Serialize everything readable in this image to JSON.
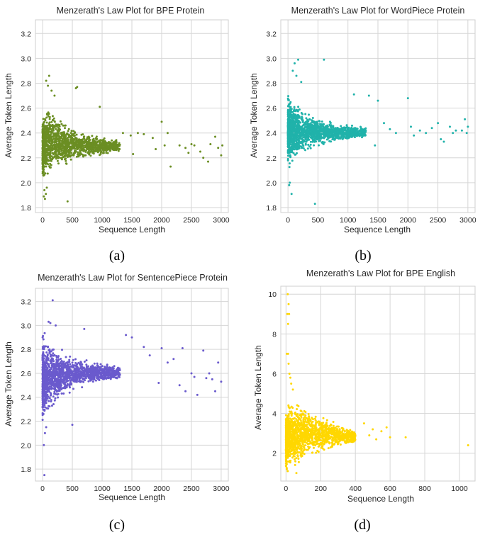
{
  "captions": [
    "(a)",
    "(b)",
    "(c)",
    "(d)"
  ],
  "chart_data": [
    {
      "type": "scatter",
      "title": "Menzerath's Law Plot for BPE Protein",
      "xlabel": "Sequence Length",
      "ylabel": "Average Token Length",
      "xlim": [
        -120,
        3120
      ],
      "ylim": [
        1.76,
        3.31
      ],
      "xticks": [
        0,
        500,
        1000,
        1500,
        2000,
        2500,
        3000
      ],
      "yticks": [
        1.8,
        2.0,
        2.2,
        2.4,
        2.6,
        2.8,
        3.0,
        3.2
      ],
      "ytick_format": 1,
      "grid": true,
      "color": "#6b8e23",
      "series": [
        {
          "description_of_cloud": "dense band",
          "core": [
            [
              30,
              2.02,
              2.55
            ],
            [
              80,
              2.05,
              2.6
            ],
            [
              150,
              2.08,
              2.58
            ],
            [
              250,
              2.12,
              2.52
            ],
            [
              350,
              2.14,
              2.47
            ],
            [
              500,
              2.17,
              2.43
            ],
            [
              700,
              2.2,
              2.4
            ],
            [
              900,
              2.22,
              2.38
            ],
            [
              1100,
              2.23,
              2.36
            ],
            [
              1300,
              2.24,
              2.34
            ]
          ],
          "outliers": [
            [
              40,
              1.87
            ],
            [
              55,
              1.91
            ],
            [
              30,
              1.94
            ],
            [
              70,
              1.96
            ],
            [
              20,
              1.89
            ],
            [
              90,
              2.78
            ],
            [
              110,
              2.86
            ],
            [
              60,
              2.82
            ],
            [
              150,
              2.74
            ],
            [
              200,
              2.7
            ],
            [
              580,
              2.77
            ],
            [
              560,
              2.76
            ],
            [
              420,
              1.85
            ],
            [
              960,
              2.61
            ],
            [
              1350,
              2.4
            ],
            [
              1480,
              2.38
            ],
            [
              1520,
              2.23
            ],
            [
              1600,
              2.4
            ],
            [
              1700,
              2.39
            ],
            [
              1850,
              2.36
            ],
            [
              1900,
              2.27
            ],
            [
              2000,
              2.49
            ],
            [
              2050,
              2.3
            ],
            [
              2100,
              2.4
            ],
            [
              2150,
              2.13
            ],
            [
              2300,
              2.3
            ],
            [
              2400,
              2.28
            ],
            [
              2450,
              2.24
            ],
            [
              2500,
              2.31
            ],
            [
              2550,
              2.3
            ],
            [
              2650,
              2.25
            ],
            [
              2700,
              2.2
            ],
            [
              2780,
              2.17
            ],
            [
              2820,
              2.31
            ],
            [
              2900,
              2.37
            ],
            [
              2950,
              2.28
            ],
            [
              3000,
              2.22
            ],
            [
              3020,
              2.3
            ]
          ]
        }
      ]
    },
    {
      "type": "scatter",
      "title": "Menzerath's Law Plot for WordPiece Protein",
      "xlabel": "Sequence Length",
      "ylabel": "Average Token Length",
      "xlim": [
        -120,
        3120
      ],
      "ylim": [
        1.76,
        3.31
      ],
      "xticks": [
        0,
        500,
        1000,
        1500,
        2000,
        2500,
        3000
      ],
      "yticks": [
        1.8,
        2.0,
        2.2,
        2.4,
        2.6,
        2.8,
        3.0,
        3.2
      ],
      "ytick_format": 1,
      "grid": true,
      "color": "#20b2aa",
      "series": [
        {
          "description_of_cloud": "dense band",
          "core": [
            [
              30,
              2.1,
              2.7
            ],
            [
              80,
              2.16,
              2.66
            ],
            [
              150,
              2.2,
              2.62
            ],
            [
              250,
              2.24,
              2.58
            ],
            [
              350,
              2.27,
              2.55
            ],
            [
              500,
              2.3,
              2.52
            ],
            [
              700,
              2.32,
              2.49
            ],
            [
              900,
              2.34,
              2.47
            ],
            [
              1100,
              2.35,
              2.46
            ],
            [
              1300,
              2.36,
              2.45
            ]
          ],
          "outliers": [
            [
              30,
              2.0
            ],
            [
              20,
              1.98
            ],
            [
              60,
              1.91
            ],
            [
              450,
              1.83
            ],
            [
              80,
              2.9
            ],
            [
              110,
              2.96
            ],
            [
              170,
              2.99
            ],
            [
              600,
              2.99
            ],
            [
              140,
              2.86
            ],
            [
              220,
              2.81
            ],
            [
              1100,
              2.71
            ],
            [
              1350,
              2.7
            ],
            [
              1500,
              2.66
            ],
            [
              1450,
              2.3
            ],
            [
              1600,
              2.48
            ],
            [
              1700,
              2.43
            ],
            [
              1800,
              2.4
            ],
            [
              2000,
              2.68
            ],
            [
              2050,
              2.45
            ],
            [
              2100,
              2.38
            ],
            [
              2200,
              2.42
            ],
            [
              2300,
              2.4
            ],
            [
              2400,
              2.44
            ],
            [
              2500,
              2.48
            ],
            [
              2550,
              2.35
            ],
            [
              2600,
              2.33
            ],
            [
              2700,
              2.45
            ],
            [
              2750,
              2.4
            ],
            [
              2800,
              2.42
            ],
            [
              2900,
              2.42
            ],
            [
              2950,
              2.51
            ],
            [
              3000,
              2.45
            ],
            [
              2980,
              2.4
            ]
          ]
        }
      ]
    },
    {
      "type": "scatter",
      "title": "Menzerath's Law Plot for SentencePiece Protein",
      "xlabel": "Sequence Length",
      "ylabel": "Average Token Length",
      "xlim": [
        -120,
        3120
      ],
      "ylim": [
        1.7,
        3.31
      ],
      "xticks": [
        0,
        500,
        1000,
        1500,
        2000,
        2500,
        3000
      ],
      "yticks": [
        1.8,
        2.0,
        2.2,
        2.4,
        2.6,
        2.8,
        3.0,
        3.2
      ],
      "ytick_format": 1,
      "grid": true,
      "color": "#6a5acd",
      "series": [
        {
          "description_of_cloud": "dense band",
          "core": [
            [
              30,
              2.2,
              2.9
            ],
            [
              80,
              2.25,
              2.88
            ],
            [
              150,
              2.3,
              2.86
            ],
            [
              250,
              2.38,
              2.8
            ],
            [
              350,
              2.42,
              2.77
            ],
            [
              500,
              2.46,
              2.74
            ],
            [
              700,
              2.5,
              2.71
            ],
            [
              900,
              2.52,
              2.69
            ],
            [
              1100,
              2.54,
              2.67
            ],
            [
              1300,
              2.55,
              2.66
            ]
          ],
          "outliers": [
            [
              20,
              2.0
            ],
            [
              30,
              1.75
            ],
            [
              40,
              2.1
            ],
            [
              60,
              2.15
            ],
            [
              500,
              2.17
            ],
            [
              170,
              3.21
            ],
            [
              100,
              3.03
            ],
            [
              130,
              3.02
            ],
            [
              220,
              3.0
            ],
            [
              700,
              2.97
            ],
            [
              1400,
              2.92
            ],
            [
              1500,
              2.9
            ],
            [
              1700,
              2.82
            ],
            [
              1800,
              2.75
            ],
            [
              1950,
              2.52
            ],
            [
              2000,
              2.81
            ],
            [
              2100,
              2.69
            ],
            [
              2200,
              2.72
            ],
            [
              2300,
              2.5
            ],
            [
              2350,
              2.81
            ],
            [
              2400,
              2.45
            ],
            [
              2500,
              2.6
            ],
            [
              2550,
              2.57
            ],
            [
              2600,
              2.42
            ],
            [
              2700,
              2.79
            ],
            [
              2750,
              2.56
            ],
            [
              2800,
              2.6
            ],
            [
              2850,
              2.55
            ],
            [
              2900,
              2.45
            ],
            [
              2950,
              2.69
            ],
            [
              3000,
              2.53
            ]
          ]
        }
      ]
    },
    {
      "type": "scatter",
      "title": "Menzerath's Law Plot for BPE English",
      "xlabel": "Sequence Length",
      "ylabel": "Average Token Length",
      "xlim": [
        -30,
        1090
      ],
      "ylim": [
        0.6,
        10.4
      ],
      "xticks": [
        0,
        200,
        400,
        600,
        800,
        1000
      ],
      "yticks": [
        2,
        4,
        6,
        8,
        10
      ],
      "ytick_format": 0,
      "grid": true,
      "color": "#ffd700",
      "series": [
        {
          "description_of_cloud": "triangle",
          "core": [
            [
              5,
              1.0,
              4.3
            ],
            [
              20,
              1.2,
              4.5
            ],
            [
              50,
              1.5,
              4.4
            ],
            [
              100,
              1.7,
              4.3
            ],
            [
              150,
              1.9,
              4.1
            ],
            [
              200,
              2.0,
              3.9
            ],
            [
              250,
              2.2,
              3.7
            ],
            [
              300,
              2.3,
              3.5
            ],
            [
              350,
              2.4,
              3.3
            ],
            [
              400,
              2.5,
              3.1
            ]
          ],
          "outliers": [
            [
              10,
              10.0
            ],
            [
              15,
              9.5
            ],
            [
              8,
              9.0
            ],
            [
              18,
              9.0
            ],
            [
              12,
              8.5
            ],
            [
              5,
              7.0
            ],
            [
              12,
              7.0
            ],
            [
              20,
              6.0
            ],
            [
              25,
              5.8
            ],
            [
              15,
              6.5
            ],
            [
              30,
              5.5
            ],
            [
              40,
              5.2
            ],
            [
              10,
              1.1
            ],
            [
              60,
              1.0
            ],
            [
              450,
              3.5
            ],
            [
              480,
              2.9
            ],
            [
              500,
              3.2
            ],
            [
              520,
              2.7
            ],
            [
              550,
              3.1
            ],
            [
              580,
              3.3
            ],
            [
              600,
              2.8
            ],
            [
              690,
              2.8
            ],
            [
              1050,
              2.4
            ]
          ]
        }
      ]
    }
  ]
}
